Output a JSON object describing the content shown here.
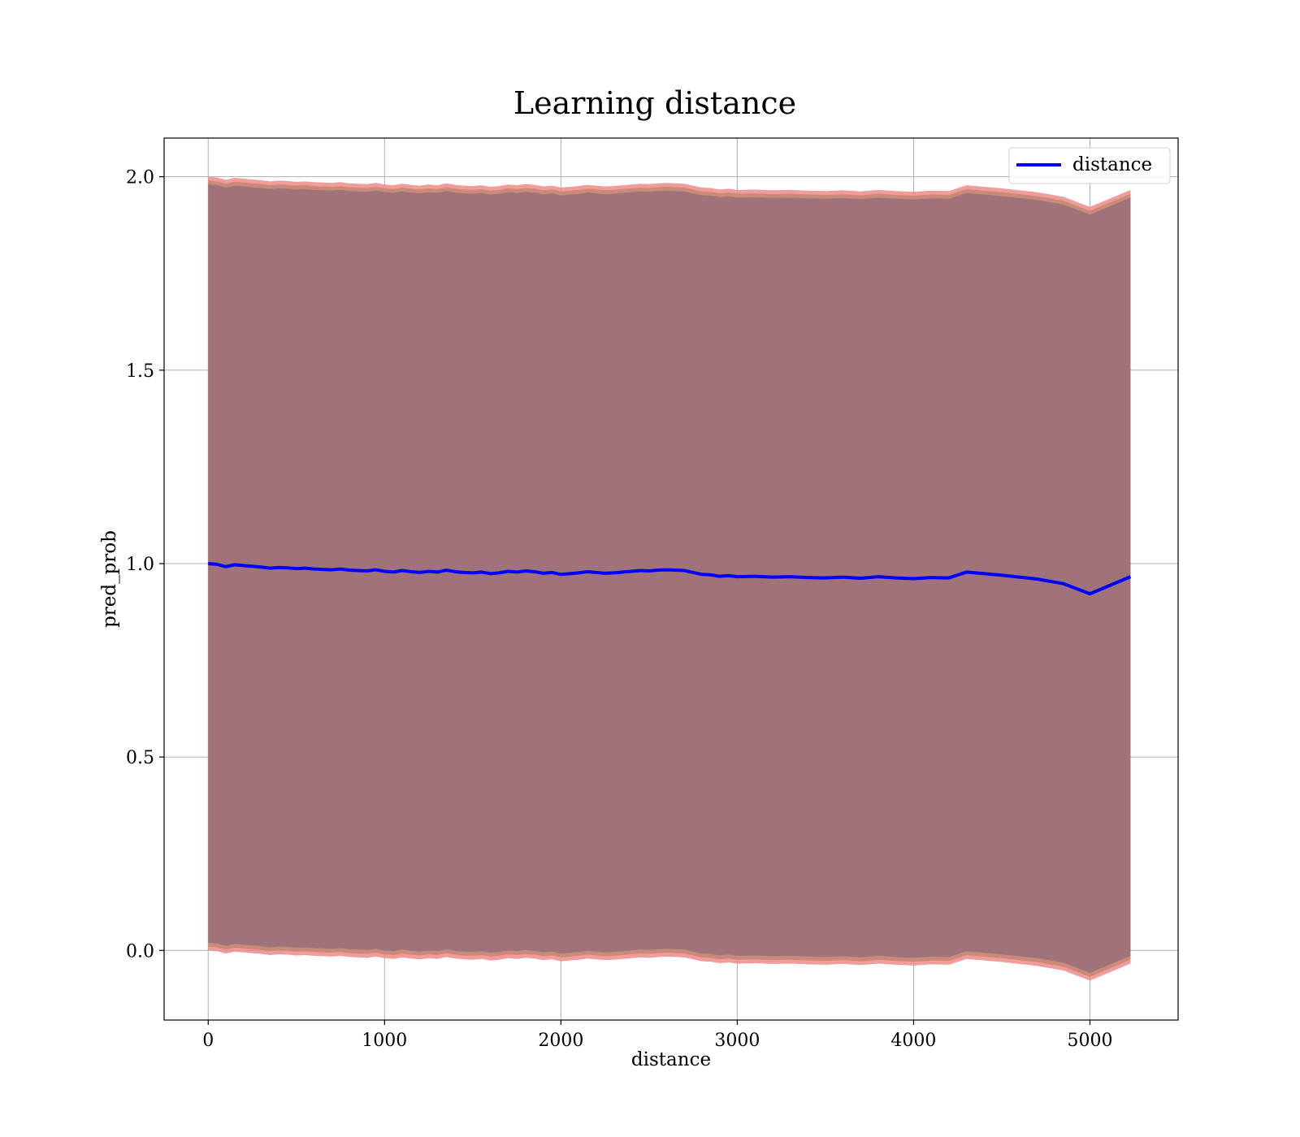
{
  "chart_data": {
    "type": "line",
    "title": "Learning distance",
    "xlabel": "distance",
    "ylabel": "pred_prob",
    "xlim": [
      -250,
      5500
    ],
    "ylim": [
      -0.18,
      2.1
    ],
    "xticks": [
      0,
      1000,
      2000,
      3000,
      4000,
      5000
    ],
    "yticks": [
      0.0,
      0.5,
      1.0,
      1.5,
      2.0
    ],
    "xtick_labels": [
      "0",
      "1000",
      "2000",
      "3000",
      "4000",
      "5000"
    ],
    "ytick_labels": [
      "0.0",
      "0.5",
      "1.0",
      "1.5",
      "2.0"
    ],
    "grid": true,
    "legend_position": "upper-right",
    "series": [
      {
        "name": "distance",
        "color": "#0000ff",
        "x": [
          0,
          50,
          100,
          150,
          200,
          250,
          300,
          350,
          400,
          450,
          500,
          550,
          600,
          650,
          700,
          750,
          800,
          850,
          900,
          950,
          1000,
          1050,
          1100,
          1150,
          1200,
          1250,
          1300,
          1350,
          1400,
          1450,
          1500,
          1550,
          1600,
          1650,
          1700,
          1750,
          1800,
          1850,
          1900,
          1950,
          2000,
          2050,
          2100,
          2150,
          2200,
          2250,
          2300,
          2350,
          2400,
          2450,
          2500,
          2550,
          2600,
          2650,
          2700,
          2750,
          2800,
          2850,
          2900,
          2950,
          3000,
          3100,
          3200,
          3300,
          3400,
          3500,
          3600,
          3700,
          3800,
          3900,
          4000,
          4100,
          4200,
          4300,
          4500,
          4700,
          4850,
          5000,
          5230
        ],
        "y": [
          1.0,
          0.998,
          0.992,
          0.997,
          0.995,
          0.993,
          0.991,
          0.988,
          0.99,
          0.989,
          0.987,
          0.988,
          0.986,
          0.985,
          0.984,
          0.986,
          0.983,
          0.982,
          0.981,
          0.984,
          0.98,
          0.978,
          0.982,
          0.979,
          0.977,
          0.98,
          0.978,
          0.983,
          0.979,
          0.977,
          0.976,
          0.978,
          0.974,
          0.976,
          0.98,
          0.978,
          0.981,
          0.979,
          0.975,
          0.977,
          0.972,
          0.974,
          0.976,
          0.979,
          0.977,
          0.975,
          0.976,
          0.978,
          0.98,
          0.982,
          0.981,
          0.983,
          0.984,
          0.983,
          0.982,
          0.977,
          0.972,
          0.971,
          0.967,
          0.969,
          0.966,
          0.967,
          0.965,
          0.966,
          0.964,
          0.963,
          0.965,
          0.962,
          0.966,
          0.963,
          0.961,
          0.964,
          0.963,
          0.978,
          0.97,
          0.96,
          0.948,
          0.922,
          0.966
        ]
      }
    ],
    "band": {
      "description_color_fill": "#a0727a",
      "color_edge": "#f08a8a",
      "color_edge_inner": "#c98a78"
    }
  }
}
